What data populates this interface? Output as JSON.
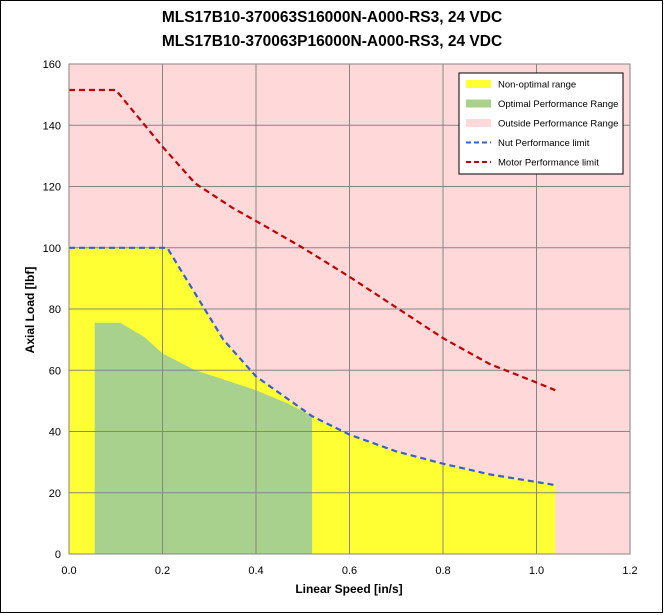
{
  "chart_data": {
    "type": "area",
    "title": "MLS17B10-370063S16000N-A000-RS3, 24 VDC",
    "subtitle": "MLS17B10-370063P16000N-A000-RS3, 24 VDC",
    "xlabel": "Linear Speed [in/s]",
    "ylabel": "Axial Load [lbf]",
    "xlim": [
      0,
      1.2
    ],
    "ylim": [
      0,
      160
    ],
    "x_ticks": [
      "0.0",
      "0.2",
      "0.4",
      "0.6",
      "0.8",
      "1.0",
      "1.2"
    ],
    "y_ticks": [
      "0",
      "20",
      "40",
      "60",
      "80",
      "100",
      "120",
      "140",
      "160"
    ],
    "grid": true,
    "legend_position": "top-right",
    "series": [
      {
        "name": "Non-optimal range",
        "kind": "area",
        "color": "#ffff33",
        "x": [
          0,
          0.21,
          0.33,
          0.4,
          0.52,
          0.6,
          0.7,
          0.8,
          0.9,
          1.0,
          1.04,
          1.04
        ],
        "y": [
          100,
          100,
          70,
          58,
          45,
          39,
          33.5,
          29.5,
          26,
          23.5,
          22.5,
          0
        ]
      },
      {
        "name": "Optimal Performance Range",
        "kind": "area",
        "color": "#a9d18e",
        "x": [
          0.055,
          0.055,
          0.11,
          0.16,
          0.2,
          0.27,
          0.33,
          0.4,
          0.47,
          0.52,
          0.52
        ],
        "y": [
          0,
          75.5,
          75.5,
          71,
          65.5,
          60,
          57,
          53.5,
          49,
          45,
          0
        ]
      },
      {
        "name": "Outside Performance Range",
        "kind": "background",
        "color": "#ffd9da"
      },
      {
        "name": "Nut Performance limit",
        "kind": "dashed-line",
        "color": "#3a5fcd",
        "x": [
          0,
          0.21,
          0.33,
          0.4,
          0.52,
          0.6,
          0.7,
          0.8,
          0.9,
          1.0,
          1.04
        ],
        "y": [
          100,
          100,
          70,
          58,
          45,
          39,
          33.5,
          29.5,
          26,
          23.5,
          22.5
        ]
      },
      {
        "name": "Motor Performance limit",
        "kind": "dashed-line",
        "color": "#c00000",
        "x": [
          0,
          0.1,
          0.2,
          0.27,
          0.35,
          0.42,
          0.5,
          0.6,
          0.7,
          0.8,
          0.9,
          1.0,
          1.04
        ],
        "y": [
          151.5,
          151.5,
          133,
          121,
          113,
          107,
          100,
          90.5,
          80.5,
          70.5,
          62,
          56,
          53.5
        ]
      }
    ]
  }
}
